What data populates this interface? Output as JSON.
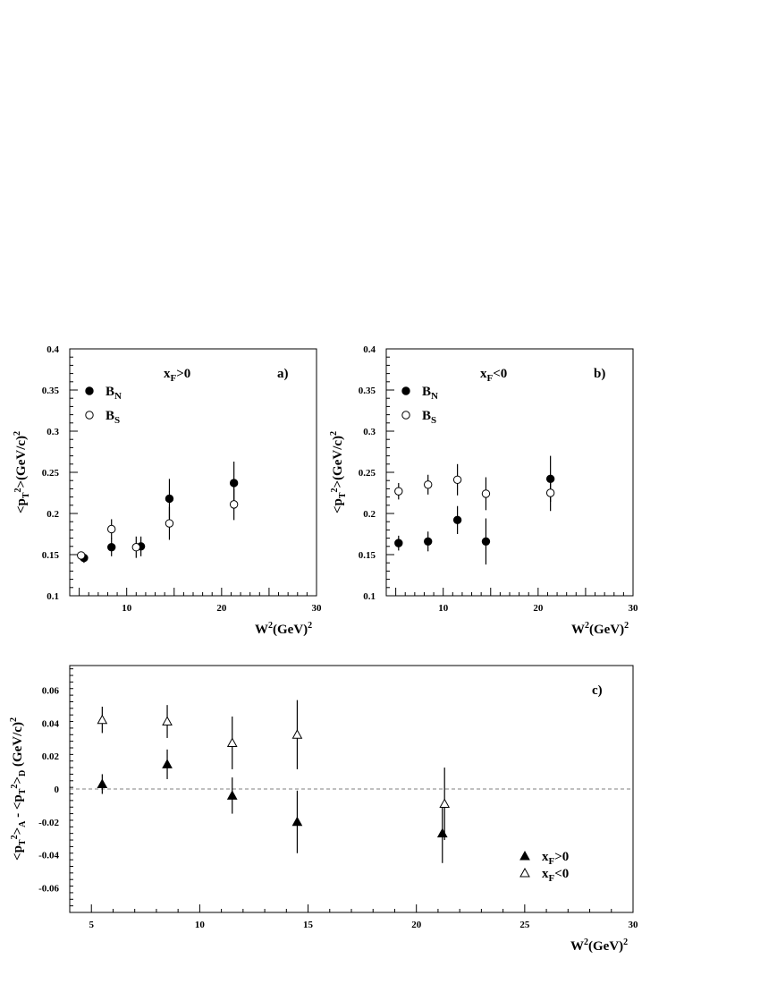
{
  "chart_data": [
    {
      "id": "a",
      "type": "scatter",
      "panel_label": "a)",
      "condition": {
        "main": "x",
        "sub": "F",
        "rest": ">0"
      },
      "xlabel": {
        "main": "W",
        "sup": "2",
        "rest": "(GeV)",
        "sup2": "2"
      },
      "ylabel": {
        "lt": "<p",
        "sub": "T",
        "sup": "2",
        "rest": ">(GeV/c)",
        "sup2": "2"
      },
      "xlim": [
        4,
        30
      ],
      "ylim": [
        0.1,
        0.4
      ],
      "xticks": [
        10,
        20,
        30
      ],
      "yticks": [
        0.1,
        0.15,
        0.2,
        0.25,
        0.3,
        0.35,
        0.4
      ],
      "ytick_labels": [
        "0.1",
        "0.15",
        "0.2",
        "0.25",
        "0.3",
        "0.35",
        "0.4"
      ],
      "legend_position": "top-left",
      "series": [
        {
          "name": "B",
          "name_sub": "N",
          "marker": "filled-circle",
          "points": [
            {
              "x": 5.5,
              "y": 0.146,
              "err": 0.006
            },
            {
              "x": 8.4,
              "y": 0.159,
              "err": 0.011
            },
            {
              "x": 11.5,
              "y": 0.16,
              "err": 0.012
            },
            {
              "x": 14.5,
              "y": 0.218,
              "err": 0.024
            },
            {
              "x": 21.3,
              "y": 0.237,
              "err": 0.026
            }
          ]
        },
        {
          "name": "B",
          "name_sub": "S",
          "marker": "open-circle",
          "points": [
            {
              "x": 5.2,
              "y": 0.149,
              "err": 0.004
            },
            {
              "x": 8.4,
              "y": 0.181,
              "err": 0.012
            },
            {
              "x": 11.0,
              "y": 0.159,
              "err": 0.013
            },
            {
              "x": 14.5,
              "y": 0.188,
              "err": 0.02
            },
            {
              "x": 21.3,
              "y": 0.211,
              "err": 0.019
            }
          ]
        }
      ]
    },
    {
      "id": "b",
      "type": "scatter",
      "panel_label": "b)",
      "condition": {
        "main": "x",
        "sub": "F",
        "rest": "<0"
      },
      "xlabel": {
        "main": "W",
        "sup": "2",
        "rest": "(GeV)",
        "sup2": "2"
      },
      "ylabel": {
        "lt": "<p",
        "sub": "T",
        "sup": "2",
        "rest": ">(GeV/c)",
        "sup2": "2"
      },
      "xlim": [
        4,
        30
      ],
      "ylim": [
        0.1,
        0.4
      ],
      "xticks": [
        10,
        20,
        30
      ],
      "yticks": [
        0.1,
        0.15,
        0.2,
        0.25,
        0.3,
        0.35,
        0.4
      ],
      "ytick_labels": [
        "0.1",
        "0.15",
        "0.2",
        "0.25",
        "0.3",
        "0.35",
        "0.4"
      ],
      "legend_position": "top-left",
      "series": [
        {
          "name": "B",
          "name_sub": "N",
          "marker": "filled-circle",
          "points": [
            {
              "x": 5.3,
              "y": 0.164,
              "err": 0.009
            },
            {
              "x": 8.4,
              "y": 0.166,
              "err": 0.012
            },
            {
              "x": 11.5,
              "y": 0.192,
              "err": 0.017
            },
            {
              "x": 14.5,
              "y": 0.166,
              "err": 0.028
            },
            {
              "x": 21.3,
              "y": 0.242,
              "err": 0.028
            }
          ]
        },
        {
          "name": "B",
          "name_sub": "S",
          "marker": "open-circle",
          "points": [
            {
              "x": 5.3,
              "y": 0.227,
              "err": 0.01
            },
            {
              "x": 8.4,
              "y": 0.235,
              "err": 0.012
            },
            {
              "x": 11.5,
              "y": 0.241,
              "err": 0.019
            },
            {
              "x": 14.5,
              "y": 0.224,
              "err": 0.02
            },
            {
              "x": 21.3,
              "y": 0.225,
              "err": 0.022
            }
          ]
        }
      ]
    },
    {
      "id": "c",
      "type": "scatter",
      "panel_label": "c)",
      "xlabel": {
        "main": "W",
        "sup": "2",
        "rest": "(GeV)",
        "sup2": "2"
      },
      "ylabel": {
        "lt": "<p",
        "sub": "T",
        "sup": "2",
        "mid": ">",
        "sub_a": "A",
        "minus": " - <p",
        "sub2": "T",
        "sup3": "2",
        "mid2": ">",
        "sub_d": "D",
        "rest": " (GeV/c)",
        "sup2": "2"
      },
      "xlim": [
        4,
        30
      ],
      "ylim": [
        -0.075,
        0.075
      ],
      "xticks": [
        5,
        10,
        15,
        20,
        25,
        30
      ],
      "yticks": [
        -0.06,
        -0.04,
        -0.02,
        0,
        0.02,
        0.04,
        0.06
      ],
      "ytick_labels": [
        "-0.06",
        "-0.04",
        "-0.02",
        "0",
        "0.02",
        "0.04",
        "0.06"
      ],
      "reference_line": 0,
      "legend_position": "bottom-right",
      "series": [
        {
          "name": "x",
          "name_sub": "F",
          "name_rest": ">0",
          "marker": "filled-triangle",
          "points": [
            {
              "x": 5.5,
              "y": 0.003,
              "err": 0.006
            },
            {
              "x": 8.5,
              "y": 0.015,
              "err": 0.009
            },
            {
              "x": 11.5,
              "y": -0.004,
              "err": 0.011
            },
            {
              "x": 14.5,
              "y": -0.02,
              "err": 0.019
            },
            {
              "x": 21.2,
              "y": -0.027,
              "err": 0.018
            }
          ]
        },
        {
          "name": "x",
          "name_sub": "F",
          "name_rest": "<0",
          "marker": "open-triangle",
          "points": [
            {
              "x": 5.5,
              "y": 0.042,
              "err": 0.008
            },
            {
              "x": 8.5,
              "y": 0.041,
              "err": 0.01
            },
            {
              "x": 11.5,
              "y": 0.028,
              "err": 0.016
            },
            {
              "x": 14.5,
              "y": 0.033,
              "err": 0.021
            },
            {
              "x": 21.3,
              "y": -0.009,
              "err": 0.022
            }
          ]
        }
      ]
    }
  ]
}
